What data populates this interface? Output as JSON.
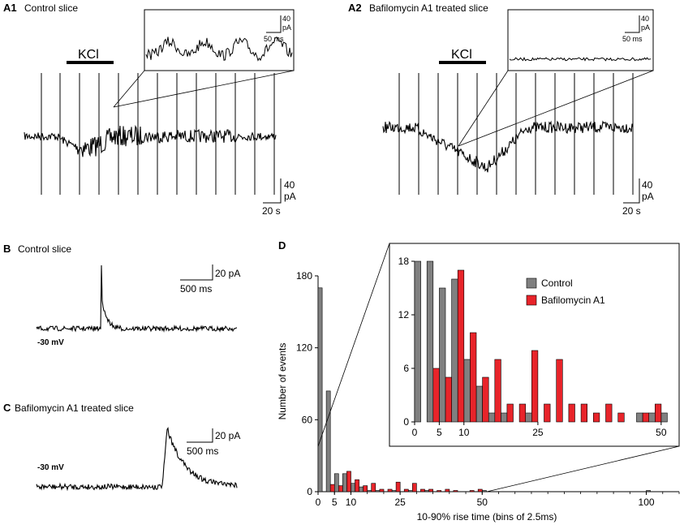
{
  "panels": {
    "a1": {
      "letter": "A1",
      "title": "Control slice",
      "kcl_label": "KCl",
      "scale_pA": "40",
      "scale_unit": "pA",
      "scale_time": "20 s",
      "inset_scale_pA": "40",
      "inset_scale_unit": "pA",
      "inset_scale_time": "50 ms"
    },
    "a2": {
      "letter": "A2",
      "title": "Bafilomycin A1 treated slice",
      "kcl_label": "KCl",
      "scale_pA": "40",
      "scale_unit": "pA",
      "scale_time": "20 s",
      "inset_scale_pA": "40",
      "inset_scale_unit": "pA",
      "inset_scale_time": "50 ms"
    },
    "b": {
      "letter": "B",
      "title": "Control slice",
      "holding": "-30 mV",
      "scale_pA": "20 pA",
      "scale_time": "500 ms"
    },
    "c": {
      "letter": "C",
      "title": "Bafilomycin A1 treated slice",
      "holding": "-30 mV",
      "scale_pA": "20 pA",
      "scale_time": "500 ms"
    },
    "d": {
      "letter": "D"
    }
  },
  "chart_data": {
    "type": "bar",
    "title": "",
    "xlabel": "10-90% rise time (bins of 2.5ms)",
    "ylabel": "Number of events",
    "main": {
      "xlim": [
        0,
        110
      ],
      "ylim": [
        0,
        180
      ],
      "yticks": [
        "0",
        "60",
        "120",
        "180"
      ],
      "xticks": [
        {
          "value": 0,
          "label": "0"
        },
        {
          "value": 5,
          "label": "5"
        },
        {
          "value": 10,
          "label": "10"
        },
        {
          "value": 25,
          "label": "25"
        },
        {
          "value": 50,
          "label": "50"
        },
        {
          "value": 100,
          "label": "100"
        }
      ],
      "series": [
        {
          "name": "Control",
          "color": "#808080",
          "bins": [
            0,
            2.5,
            5,
            7.5,
            10,
            12.5,
            15,
            17.5,
            20,
            22.5,
            25,
            27.5,
            30,
            32.5,
            35,
            37.5,
            40,
            47.5,
            50,
            100
          ],
          "values": [
            170,
            84,
            15,
            15,
            7,
            4,
            1,
            1,
            0,
            1,
            0,
            1,
            0,
            1,
            0,
            0,
            0,
            0,
            1,
            1
          ]
        },
        {
          "name": "Bafilomycin A1",
          "color": "#e8242a",
          "bins": [
            2.5,
            5,
            7.5,
            10,
            12.5,
            15,
            17.5,
            20,
            22.5,
            25,
            27.5,
            30,
            32.5,
            35,
            37.5,
            40,
            45,
            47.5
          ],
          "values": [
            6,
            5,
            17,
            10,
            5,
            7,
            2,
            2,
            8,
            2,
            7,
            2,
            2,
            1,
            2,
            1,
            1,
            2
          ]
        }
      ]
    },
    "inset": {
      "xlim": [
        0,
        52
      ],
      "ylim": [
        0,
        18
      ],
      "yticks": [
        "0",
        "6",
        "12",
        "18"
      ],
      "xticks": [
        {
          "value": 0,
          "label": "0"
        },
        {
          "value": 5,
          "label": "5"
        },
        {
          "value": 10,
          "label": "10"
        },
        {
          "value": 25,
          "label": "25"
        },
        {
          "value": 50,
          "label": "50"
        }
      ],
      "series": [
        {
          "name": "Control",
          "color": "#808080",
          "bins": [
            0,
            2.5,
            5,
            7.5,
            10,
            12.5,
            15,
            17.5,
            20,
            22.5,
            45,
            47.5,
            50
          ],
          "values": [
            18,
            18,
            15,
            16,
            7,
            4,
            1,
            1,
            0,
            1,
            1,
            1,
            1
          ]
        },
        {
          "name": "Bafilomycin A1",
          "color": "#e8242a",
          "bins": [
            2.5,
            5,
            7.5,
            10,
            12.5,
            15,
            17.5,
            20,
            22.5,
            25,
            27.5,
            30,
            32.5,
            35,
            37.5,
            40,
            45,
            47.5
          ],
          "values": [
            6,
            5,
            17,
            10,
            5,
            7,
            2,
            2,
            8,
            2,
            7,
            2,
            2,
            1,
            2,
            1,
            1,
            2
          ]
        }
      ]
    },
    "legend": [
      "Control",
      "Bafilomycin A1"
    ]
  }
}
